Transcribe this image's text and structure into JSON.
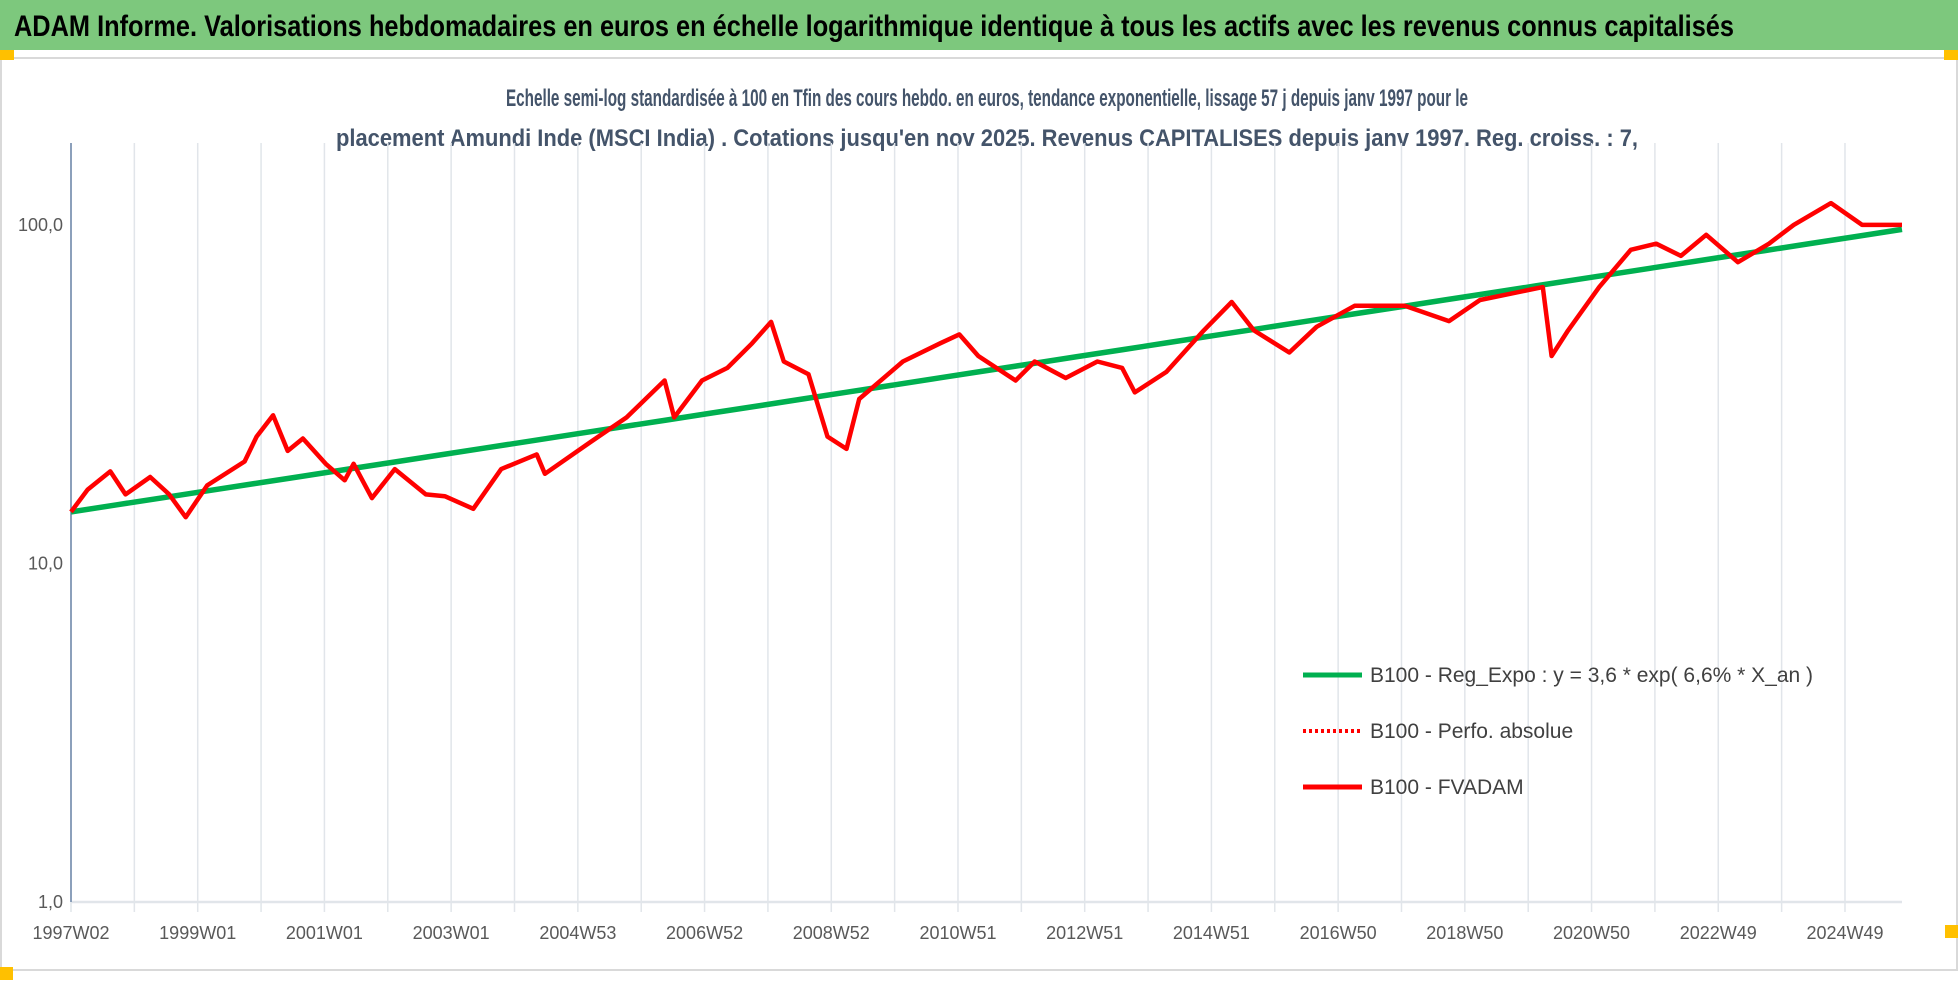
{
  "header": {
    "title": "ADAM Informe. Valorisations hebdomadaires en euros en échelle logarithmique identique à tous les actifs avec les revenus connus capitalisés"
  },
  "colors": {
    "header_bg": "#7dc87d",
    "handle": "#ffc000",
    "trend": "#00b050",
    "series": "#ff0000",
    "subtitle": "#44546a",
    "grid": "#e1e5ea",
    "axis": "#6a85a8"
  },
  "chart_data": {
    "type": "line",
    "title": "Echelle semi-log standardisée à 100 en Tfin des cours hebdo. en euros, tendance exponentielle, lissage 57 j depuis janv 1997 pour le",
    "subtitle": "placement Amundi Inde (MSCI India) . Cotations jusqu'en nov 2025. Revenus CAPITALISES depuis janv 1997. Reg. croiss. : 7,",
    "xlabel": "",
    "ylabel": "",
    "yscale": "log",
    "ylim": [
      1,
      200
    ],
    "xlim": [
      1997.0,
      2025.9
    ],
    "y_ticks": [
      {
        "value": 1,
        "label": "1,0"
      },
      {
        "value": 10,
        "label": "10,0"
      },
      {
        "value": 100,
        "label": "100,0"
      }
    ],
    "x_ticks": [
      {
        "value": 1997.0,
        "label": "1997W02"
      },
      {
        "value": 1999.0,
        "label": "1999W01"
      },
      {
        "value": 2001.0,
        "label": "2001W01"
      },
      {
        "value": 2003.0,
        "label": "2003W01"
      },
      {
        "value": 2005.0,
        "label": "2004W53"
      },
      {
        "value": 2007.0,
        "label": "2006W52"
      },
      {
        "value": 2009.0,
        "label": "2008W52"
      },
      {
        "value": 2011.0,
        "label": "2010W51"
      },
      {
        "value": 2013.0,
        "label": "2012W51"
      },
      {
        "value": 2015.0,
        "label": "2014W51"
      },
      {
        "value": 2017.0,
        "label": "2016W50"
      },
      {
        "value": 2019.0,
        "label": "2018W50"
      },
      {
        "value": 2021.0,
        "label": "2020W50"
      },
      {
        "value": 2023.0,
        "label": "2022W49"
      },
      {
        "value": 2025.0,
        "label": "2024W49"
      }
    ],
    "grid": true,
    "legend_position": "bottom-right",
    "series": [
      {
        "name": "B100 - Reg_Expo : y = 3,6 * exp( 6,6% *  X_an )",
        "style": "solid-green",
        "x": [
          1997.0,
          2025.9
        ],
        "y": [
          14.2,
          97.0
        ]
      },
      {
        "name": "B100 - Perfo. absolue",
        "style": "dotted-red",
        "x": [],
        "y": []
      },
      {
        "name": "B100 - FVADAM",
        "style": "solid-red",
        "x": [
          1997.0,
          1997.26,
          1997.62,
          1997.86,
          1998.25,
          1998.55,
          1998.81,
          1999.15,
          1999.74,
          1999.93,
          2000.19,
          2000.42,
          2000.66,
          2001.02,
          2001.32,
          2001.46,
          2001.75,
          2002.11,
          2002.6,
          2002.9,
          2003.35,
          2003.79,
          2004.35,
          2004.48,
          2005.18,
          2005.77,
          2006.37,
          2006.52,
          2006.96,
          2007.36,
          2007.75,
          2008.05,
          2008.25,
          2008.64,
          2008.94,
          2009.24,
          2009.44,
          2010.13,
          2010.72,
          2011.02,
          2011.32,
          2011.91,
          2012.21,
          2012.7,
          2013.2,
          2013.59,
          2013.79,
          2014.29,
          2014.88,
          2015.32,
          2015.67,
          2016.23,
          2016.66,
          2017.26,
          2018.05,
          2018.75,
          2019.24,
          2020.23,
          2020.37,
          2020.63,
          2021.12,
          2021.62,
          2022.02,
          2022.41,
          2022.81,
          2023.31,
          2023.8,
          2024.19,
          2024.78,
          2025.27,
          2025.57,
          2025.9
        ],
        "y": [
          14.2,
          16.5,
          18.7,
          16.0,
          18.0,
          16.0,
          13.7,
          17.0,
          20.0,
          23.7,
          27.4,
          21.5,
          23.4,
          19.7,
          17.6,
          19.7,
          15.6,
          19.0,
          16.0,
          15.8,
          14.5,
          19.0,
          21.0,
          18.4,
          22.7,
          27.0,
          34.7,
          27.0,
          34.7,
          37.8,
          44.7,
          51.7,
          39.5,
          36.2,
          23.7,
          21.8,
          30.6,
          39.5,
          44.7,
          47.5,
          41.0,
          34.7,
          39.5,
          35.3,
          39.5,
          37.8,
          32.0,
          36.8,
          48.8,
          59.2,
          48.8,
          42.0,
          50.0,
          57.7,
          57.7,
          52.0,
          60.0,
          65.5,
          41.0,
          48.8,
          65.5,
          84.4,
          88.0,
          81.0,
          93.5,
          77.6,
          88.0,
          100.0,
          116.0,
          100.0,
          100.0,
          100.0
        ]
      }
    ]
  }
}
